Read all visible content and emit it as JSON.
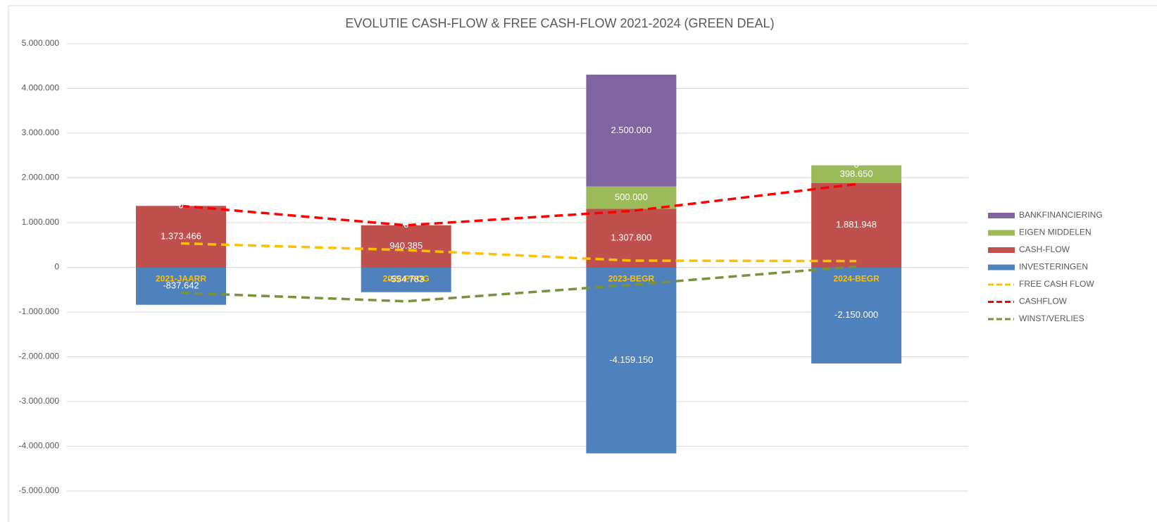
{
  "chart_data": {
    "type": "bar",
    "title": "EVOLUTIE CASH-FLOW & FREE CASH-FLOW 2021-2024 (GREEN DEAL)",
    "categories": [
      "2021-JAARR",
      "2022-PROG",
      "2023-BEGR",
      "2024-BEGR"
    ],
    "ylim": [
      -5000000,
      5000000
    ],
    "yticks": [
      {
        "value": -5000000,
        "label": "-5.000.000"
      },
      {
        "value": -4000000,
        "label": "-4.000.000"
      },
      {
        "value": -3000000,
        "label": "-3.000.000"
      },
      {
        "value": -2000000,
        "label": "-2.000.000"
      },
      {
        "value": -1000000,
        "label": "-1.000.000"
      },
      0,
      {
        "value": 1000000,
        "label": "1.000.000"
      },
      {
        "value": 2000000,
        "label": "2.000.000"
      },
      {
        "value": 3000000,
        "label": "3.000.000"
      },
      {
        "value": 4000000,
        "label": "4.000.000"
      },
      {
        "value": 5000000,
        "label": "5.000.000"
      }
    ],
    "grid": true,
    "legend": "right",
    "series": [
      {
        "name": "INVESTERINGEN",
        "type": "bar",
        "color": "#4f81bd",
        "values": [
          -837642,
          -554783,
          -4159150,
          -2150000
        ],
        "value_labels": [
          "-837.642",
          "-554.783",
          "-4.159.150",
          "-2.150.000"
        ]
      },
      {
        "name": "CASH-FLOW",
        "type": "bar",
        "color": "#c0504d",
        "values": [
          1373466,
          940385,
          1307800,
          1881948
        ],
        "value_labels": [
          "1.373.466",
          "940.385",
          "1.307.800",
          "1.881.948"
        ]
      },
      {
        "name": "EIGEN MIDDELEN",
        "type": "bar",
        "color": "#9bbb59",
        "values": [
          0,
          0,
          500000,
          398650
        ],
        "value_labels": [
          "0",
          "0",
          "500.000",
          "398.650"
        ]
      },
      {
        "name": "BANKFINANCIERING",
        "type": "bar",
        "color": "#8064a2",
        "values": [
          0,
          0,
          2500000,
          0
        ],
        "value_labels": [
          "0",
          "0",
          "2.500.000",
          "0"
        ]
      },
      {
        "name": "FREE CASH FLOW",
        "type": "line",
        "color": "#ffc000",
        "values": [
          536000,
          386000,
          150000,
          140000
        ]
      },
      {
        "name": "CASHFLOW",
        "type": "line",
        "color": "#ff0000",
        "values": [
          1373466,
          940385,
          1260000,
          1860000
        ]
      },
      {
        "name": "WINST/VERLIES",
        "type": "line",
        "color": "#77933c",
        "values": [
          -570000,
          -760000,
          -390000,
          20000
        ]
      }
    ]
  }
}
